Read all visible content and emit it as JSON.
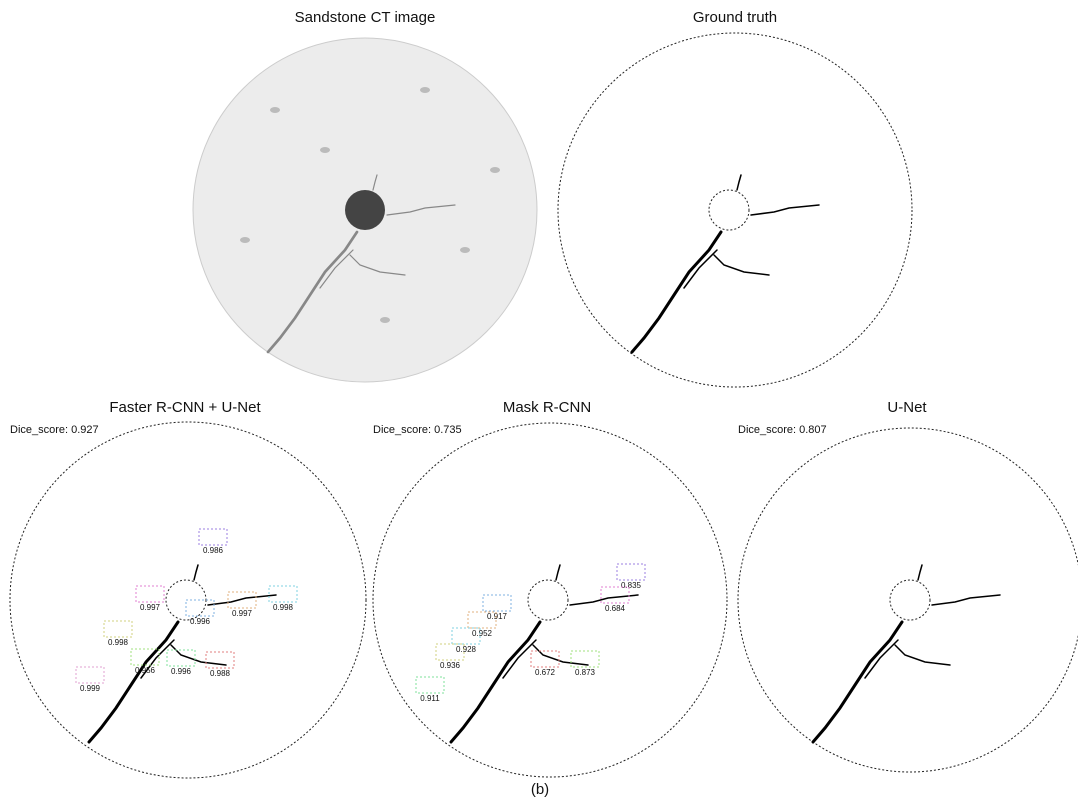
{
  "panels": [
    {
      "title": "Sandstone CT image"
    },
    {
      "title": "Ground truth"
    },
    {
      "title": "Faster R-CNN + U-Net",
      "dice_label": "Dice_score: 0.927",
      "box_labels": [
        "0.986",
        "0.997",
        "0.996",
        "0.997",
        "0.998",
        "0.998",
        "0.996",
        "0.988",
        "0.956",
        "0.999"
      ]
    },
    {
      "title": "Mask R-CNN",
      "dice_label": "Dice_score: 0.735",
      "box_labels": [
        "0.835",
        "0.684",
        "0.917",
        "0.952",
        "0.928",
        "0.936",
        "0.911",
        "0.672",
        "0.873"
      ]
    },
    {
      "title": "U-Net",
      "dice_label": "Dice_score: 0.807"
    }
  ],
  "caption": "(b)"
}
